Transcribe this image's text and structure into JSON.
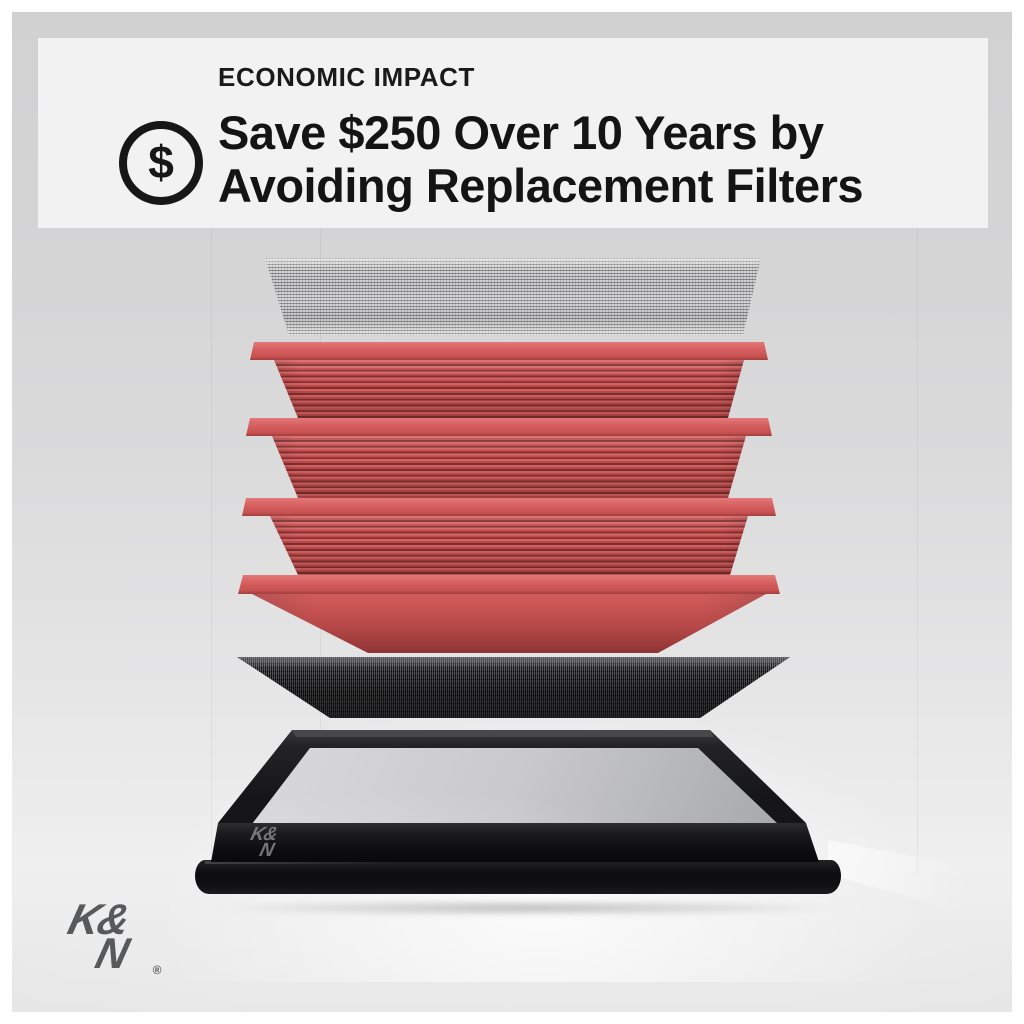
{
  "banner": {
    "eyebrow": "ECONOMIC IMPACT",
    "headline_line1": "Save $250 Over 10 Years by",
    "headline_line2": "Avoiding Replacement Filters",
    "dollar_icon": {
      "name": "dollar-circle-icon",
      "glyph": "$"
    },
    "background": "#f3f2f2",
    "text_color": "#151515"
  },
  "product": {
    "layers": [
      {
        "name": "top-wire-mesh-screen",
        "color": "#9a9a9c"
      },
      {
        "name": "cotton-gauze-layer-1",
        "color": "#d05757"
      },
      {
        "name": "cotton-gauze-layer-2",
        "color": "#d05757"
      },
      {
        "name": "cotton-gauze-layer-3",
        "color": "#d05757"
      },
      {
        "name": "cotton-gauze-layer-4",
        "color": "#b84a4a"
      },
      {
        "name": "bottom-wire-mesh-screen",
        "color": "#39393b"
      },
      {
        "name": "filter-frame-tray",
        "color": "#141416"
      }
    ],
    "frame_logo": {
      "line1": "K&",
      "line2": "N"
    }
  },
  "brand_logo": {
    "line1": "K&",
    "line2": "N",
    "registered_mark": "®",
    "color": "#58595b"
  },
  "scene": {
    "background_top": "#d1d1d2",
    "background_bottom": "#e9e9ea",
    "border_color": "#ffffff"
  }
}
